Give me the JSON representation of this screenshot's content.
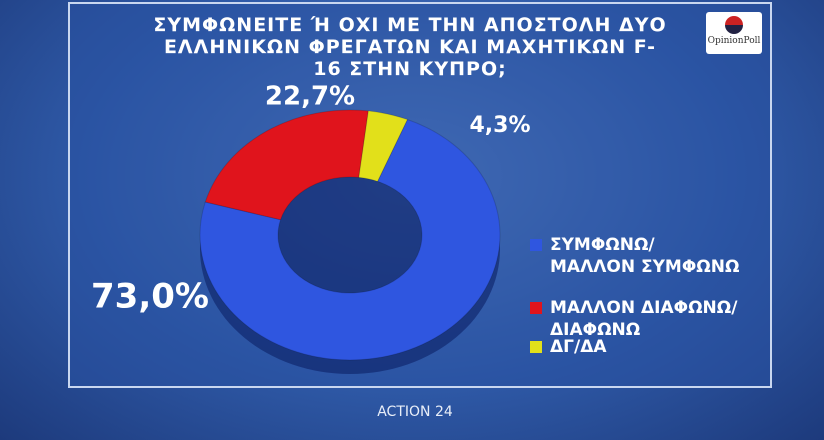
{
  "chart_data": {
    "type": "pie",
    "title": "ΣΥΜΦΩΝΕΙΤΕ Ή ΟΧΙ ΜΕ ΤΗΝ ΑΠΟΣΤΟΛΗ ΔΥΟ ΕΛΛΗΝΙΚΩΝ ΦΡΕΓΑΤΩΝ ΚΑΙ ΜΑΧΗΤΙΚΩΝ F-16 ΣΤΗΝ ΚΥΠΡΟ;",
    "categories": [
      "ΣΥΜΦΩΝΩ/ ΜΑΛΛΟΝ ΣΥΜΦΩΝΩ",
      "ΜΑΛΛΟΝ ΔΙΑΦΩΝΩ/ ΔΙΑΦΩΝΩ",
      "ΔΓ/ΔΑ"
    ],
    "values": [
      73.0,
      22.7,
      4.3
    ],
    "value_labels": [
      "73,0%",
      "22,7%",
      "4,3%"
    ],
    "colors": [
      "#2f56e0",
      "#e0141c",
      "#e2e01a"
    ],
    "donut": true,
    "legend": "right"
  },
  "logo": "OpinionPoll",
  "footer": "ACTION 24"
}
